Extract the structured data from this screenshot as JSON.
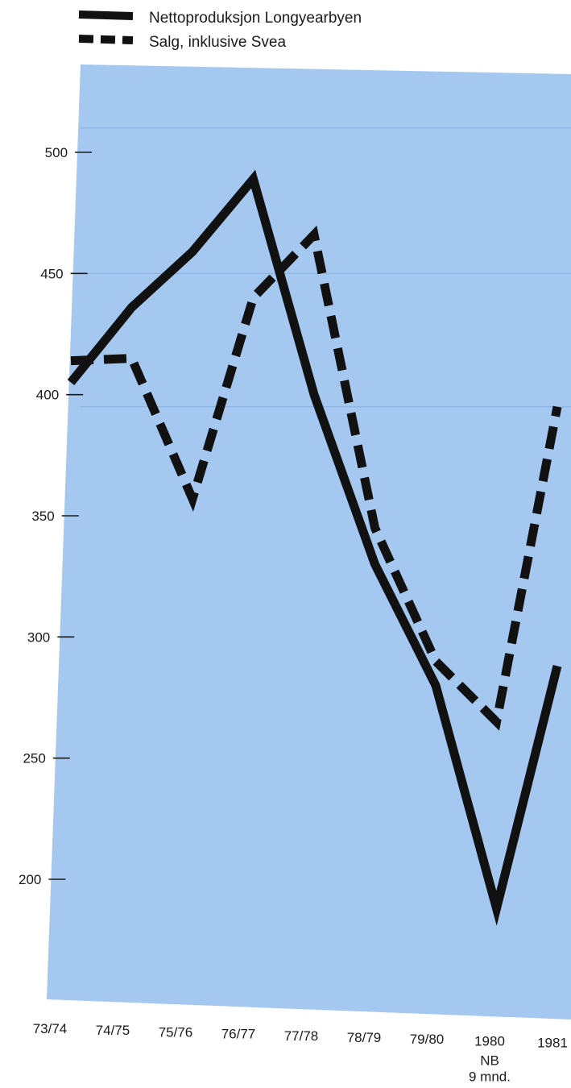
{
  "chart_data": {
    "type": "line",
    "title": "",
    "xlabel": "",
    "ylabel": "",
    "categories": [
      "73/74",
      "74/75",
      "75/76",
      "76/77",
      "77/78",
      "78/79",
      "79/80",
      "1980",
      "1981"
    ],
    "category_notes": {
      "1980": "NB\n9 mnd."
    },
    "ylim": [
      165,
      530
    ],
    "yticks": [
      200,
      250,
      300,
      350,
      400,
      450,
      500
    ],
    "series": [
      {
        "name": "Nettoproduksjon Longyearbyen",
        "style": "solid",
        "values": [
          405,
          436,
          459,
          489,
          400,
          330,
          280,
          188,
          288
        ]
      },
      {
        "name": "Salg, inklusive Svea",
        "style": "dashed",
        "values": [
          414,
          415,
          357,
          440,
          466,
          345,
          290,
          265,
          395
        ]
      }
    ],
    "grid": "faint horizontal lines",
    "legend_position": "top-left",
    "colors": {
      "plot_background": "#a4c8f0",
      "line": "#111111",
      "grid": "#8fb6e2"
    }
  }
}
